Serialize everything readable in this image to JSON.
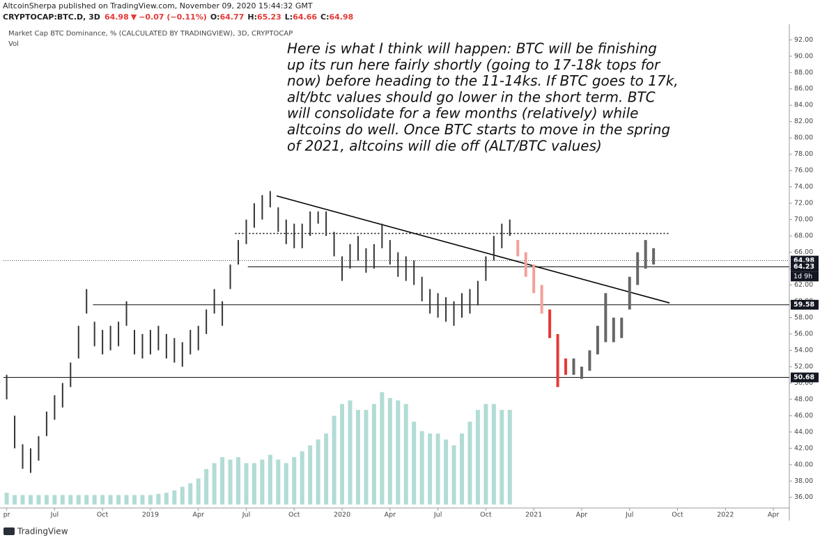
{
  "header": {
    "byline": "AltcoinSherpa published on TradingView.com, November 09, 2020 15:44:32 GMT",
    "symbol": "CRYPTOCAP:BTC.D, 3D",
    "last": 64.98,
    "arrow": "▼",
    "change": "−0.07 (−0.11%)",
    "ohlc": [
      {
        "label": "O:",
        "value": 64.77
      },
      {
        "label": "H:",
        "value": 65.23
      },
      {
        "label": "L:",
        "value": 64.66
      },
      {
        "label": "C:",
        "value": 64.98
      }
    ]
  },
  "chart_data": {
    "type": "ohlc",
    "legend": "Market Cap BTC Dominance, % (CALCULATED BY TRADINGVIEW), 3D, CRYPTOCAP",
    "volume_label": "Vol",
    "annotation": [
      "Here is what I think will happen: BTC will be finishing",
      "up its run here fairly shortly (going to 17-18k tops for",
      "now) before heading to the 11-14ks. If BTC goes to 17k,",
      "alt/btc values should go lower in the short term. BTC",
      "will consolidate for a few months (relatively) while",
      "altcoins do well. Once BTC starts to move in the spring",
      "of 2021, altcoins will die off (ALT/BTC values)"
    ],
    "xlim": [
      -0.2,
      49
    ],
    "xticks": [
      {
        "value": 0,
        "label": "pr"
      },
      {
        "value": 3,
        "label": "Jul"
      },
      {
        "value": 6,
        "label": "Oct"
      },
      {
        "value": 9,
        "label": "2019"
      },
      {
        "value": 12,
        "label": "Apr"
      },
      {
        "value": 15,
        "label": "Jul"
      },
      {
        "value": 18,
        "label": "Oct"
      },
      {
        "value": 21,
        "label": "2020"
      },
      {
        "value": 24,
        "label": "Apr"
      },
      {
        "value": 27,
        "label": "Jul"
      },
      {
        "value": 30,
        "label": "Oct"
      },
      {
        "value": 33,
        "label": "2021"
      },
      {
        "value": 36,
        "label": "Apr"
      },
      {
        "value": 39,
        "label": "Jul"
      },
      {
        "value": 42,
        "label": "Oct"
      },
      {
        "value": 45,
        "label": "2022"
      },
      {
        "value": 48,
        "label": "Apr"
      }
    ],
    "ylim": [
      34.7,
      93.9
    ],
    "yticks": [
      {
        "value": 36,
        "label": "36.00"
      },
      {
        "value": 38,
        "label": "38.00"
      },
      {
        "value": 40,
        "label": "40.00"
      },
      {
        "value": 42,
        "label": "42.00"
      },
      {
        "value": 44,
        "label": "44.00"
      },
      {
        "value": 46,
        "label": "46.00"
      },
      {
        "value": 48,
        "label": "48.00"
      },
      {
        "value": 50,
        "label": "50.00"
      },
      {
        "value": 52,
        "label": "52.00"
      },
      {
        "value": 54,
        "label": "54.00"
      },
      {
        "value": 56,
        "label": "56.00"
      },
      {
        "value": 58,
        "label": "58.00"
      },
      {
        "value": 60,
        "label": "60.00"
      },
      {
        "value": 62,
        "label": "62.00"
      },
      {
        "value": 64,
        "label": "64.00"
      },
      {
        "value": 66,
        "label": "66.00"
      },
      {
        "value": 68,
        "label": "68.00"
      },
      {
        "value": 70,
        "label": "70.00"
      },
      {
        "value": 72,
        "label": "72.00"
      },
      {
        "value": 74,
        "label": "74.00"
      },
      {
        "value": 76,
        "label": "76.00"
      },
      {
        "value": 78,
        "label": "78.00"
      },
      {
        "value": 80,
        "label": "80.00"
      },
      {
        "value": 82,
        "label": "82.00"
      },
      {
        "value": 84,
        "label": "84.00"
      },
      {
        "value": 86,
        "label": "86.00"
      },
      {
        "value": 88,
        "label": "88.00"
      },
      {
        "value": 90,
        "label": "90.00"
      },
      {
        "value": 92,
        "label": "92.00"
      }
    ],
    "series": [
      {
        "color": "#333333",
        "x": [
          0,
          0.5,
          1,
          1.5,
          2,
          2.5,
          3,
          3.5,
          4,
          4.5,
          5,
          5.5,
          6,
          6.5,
          7,
          7.5,
          8,
          8.5,
          9,
          9.5,
          10,
          10.5,
          11,
          11.5,
          12,
          12.5,
          13,
          13.5,
          14,
          14.5,
          15,
          15.5,
          16,
          16.5,
          17,
          17.5,
          18,
          18.5,
          19,
          19.5,
          20,
          20.5,
          21,
          21.5,
          22,
          22.5,
          23,
          23.5,
          24,
          24.5,
          25,
          25.5,
          26,
          26.5,
          27,
          27.5,
          28,
          28.5,
          29,
          29.5,
          30,
          30.5,
          31,
          31.5
        ],
        "high": [
          51,
          46,
          42.5,
          42,
          43.5,
          46.5,
          48.5,
          50,
          52.5,
          57,
          61.5,
          57.5,
          56.5,
          57,
          57.5,
          60,
          56.5,
          56,
          56.5,
          57,
          56,
          55.5,
          55,
          56.5,
          57,
          59,
          61.5,
          60,
          64.5,
          67.5,
          70,
          72,
          73,
          73.5,
          71.5,
          70,
          69.5,
          69.5,
          71,
          71,
          71,
          68.5,
          65.5,
          67,
          68,
          66.5,
          67,
          69.5,
          67.5,
          66,
          65.5,
          65,
          63,
          61.5,
          61,
          60.5,
          60,
          61,
          61.5,
          62.5,
          65.5,
          68,
          69.5,
          70
        ],
        "low": [
          48,
          42,
          39.5,
          39,
          40.5,
          43.5,
          45.5,
          47,
          49.5,
          53,
          58.5,
          54.5,
          53.5,
          54,
          54.5,
          57,
          53.5,
          53,
          53.5,
          54,
          53,
          52.5,
          52,
          53.5,
          54,
          56,
          58.5,
          57,
          61.5,
          64.5,
          67,
          69,
          70,
          71.5,
          68.5,
          67,
          66.5,
          66.5,
          68,
          69.5,
          68,
          65.5,
          62.5,
          64,
          65,
          63.5,
          64,
          66.5,
          64.5,
          63,
          62.5,
          62,
          60,
          58.5,
          58,
          57.5,
          57,
          58,
          58.5,
          59.5,
          62.5,
          65,
          66.5,
          68
        ]
      },
      {
        "color": "#f4a09a",
        "x": [
          32,
          32.5,
          33,
          33.5
        ],
        "high": [
          67.5,
          66,
          64.5,
          62
        ],
        "low": [
          65.5,
          63,
          61,
          58.5
        ]
      },
      {
        "color": "#e53935",
        "x": [
          34,
          34.5,
          35
        ],
        "high": [
          59,
          56,
          53
        ],
        "low": [
          55.5,
          49.5,
          51
        ]
      },
      {
        "color": "#666666",
        "x": [
          35.5,
          36,
          36.5,
          37,
          37.5,
          38,
          38.5,
          39,
          39.5,
          40,
          40.5
        ],
        "high": [
          53,
          52,
          54,
          57,
          61,
          58,
          58,
          63,
          66,
          67.5,
          66.5
        ],
        "low": [
          51,
          50.5,
          51.5,
          53.5,
          55,
          55,
          55.5,
          59,
          62,
          64,
          64.5
        ]
      }
    ],
    "volume": {
      "color": "#9fd3cb",
      "values": [
        10,
        8,
        8,
        8,
        8,
        8,
        8,
        8,
        8,
        8,
        8,
        8,
        8,
        8,
        8,
        8,
        8,
        8,
        8,
        9,
        10,
        12,
        15,
        18,
        22,
        30,
        35,
        40,
        38,
        40,
        35,
        35,
        38,
        42,
        38,
        35,
        40,
        45,
        50,
        55,
        60,
        75,
        85,
        88,
        80,
        80,
        85,
        95,
        90,
        88,
        85,
        70,
        62,
        60,
        60,
        55,
        50,
        60,
        70,
        80,
        85,
        85,
        80,
        80
      ],
      "vlim": [
        0,
        100
      ]
    },
    "levels": [
      {
        "value": 64.98,
        "label": 64.98,
        "dotted": true
      },
      {
        "value": 64.23,
        "label": 64.23,
        "x0": 15.1,
        "countdown": "1d 9h"
      },
      {
        "value": 59.58,
        "label": 59.58,
        "x0": 5.4
      },
      {
        "value": 50.68,
        "label": 50.68
      }
    ],
    "dotted_level": {
      "value": 68.3,
      "x0": 14.3,
      "x1": 41.5
    },
    "trendline": {
      "x": [
        16.9,
        41.5
      ],
      "y": [
        72.9,
        59.8
      ]
    },
    "footer": "TradingView"
  }
}
